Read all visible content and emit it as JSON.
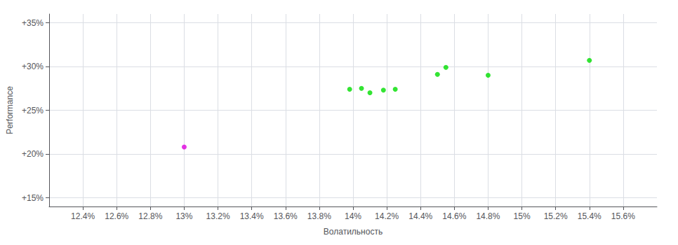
{
  "chart_data": {
    "type": "scatter",
    "xlabel": "Волатильность",
    "ylabel": "Performance",
    "xlim": [
      0.122,
      0.158
    ],
    "ylim": [
      0.14,
      0.36
    ],
    "xticks": [
      {
        "value": 0.124,
        "label": "12.4%"
      },
      {
        "value": 0.126,
        "label": "12.6%"
      },
      {
        "value": 0.128,
        "label": "12.8%"
      },
      {
        "value": 0.13,
        "label": "13%"
      },
      {
        "value": 0.132,
        "label": "13.2%"
      },
      {
        "value": 0.134,
        "label": "13.4%"
      },
      {
        "value": 0.136,
        "label": "13.6%"
      },
      {
        "value": 0.138,
        "label": "13.8%"
      },
      {
        "value": 0.14,
        "label": "14%"
      },
      {
        "value": 0.142,
        "label": "14.2%"
      },
      {
        "value": 0.144,
        "label": "14.4%"
      },
      {
        "value": 0.146,
        "label": "14.6%"
      },
      {
        "value": 0.148,
        "label": "14.8%"
      },
      {
        "value": 0.15,
        "label": "15%"
      },
      {
        "value": 0.152,
        "label": "15.2%"
      },
      {
        "value": 0.154,
        "label": "15.4%"
      },
      {
        "value": 0.156,
        "label": "15.6%"
      }
    ],
    "yticks": [
      {
        "value": 0.15,
        "label": "+15%"
      },
      {
        "value": 0.2,
        "label": "+20%"
      },
      {
        "value": 0.25,
        "label": "+25%"
      },
      {
        "value": 0.3,
        "label": "+30%"
      },
      {
        "value": 0.35,
        "label": "+35%"
      }
    ],
    "grid": true,
    "series": [
      {
        "color": "#00dd00",
        "x": [
          0.1398,
          0.1405,
          0.141,
          0.1418,
          0.1425,
          0.145,
          0.1455,
          0.148,
          0.154
        ],
        "values": [
          0.274,
          0.275,
          0.27,
          0.273,
          0.274,
          0.291,
          0.299,
          0.29,
          0.307
        ]
      },
      {
        "color": "#dd00dd",
        "x": [
          0.13
        ],
        "values": [
          0.208
        ]
      }
    ]
  }
}
